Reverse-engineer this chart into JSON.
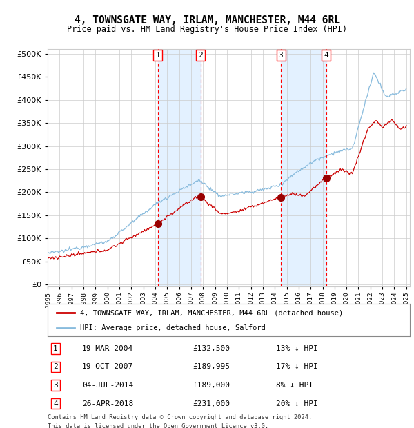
{
  "title": "4, TOWNSGATE WAY, IRLAM, MANCHESTER, M44 6RL",
  "subtitle": "Price paid vs. HM Land Registry's House Price Index (HPI)",
  "hpi_color": "#88bbdd",
  "price_color": "#cc0000",
  "sale_marker_color": "#990000",
  "bg_color": "#ddeeff",
  "grid_color": "#cccccc",
  "sales": [
    {
      "label": "1",
      "date": "19-MAR-2004",
      "price": 132500,
      "pct": "13%",
      "year": 2004.22
    },
    {
      "label": "2",
      "date": "19-OCT-2007",
      "price": 189995,
      "pct": "17%",
      "year": 2007.8
    },
    {
      "label": "3",
      "date": "04-JUL-2014",
      "price": 189000,
      "pct": "8%",
      "year": 2014.51
    },
    {
      "label": "4",
      "date": "26-APR-2018",
      "price": 231000,
      "pct": "20%",
      "year": 2018.31
    }
  ],
  "legend_line1": "4, TOWNSGATE WAY, IRLAM, MANCHESTER, M44 6RL (detached house)",
  "legend_line2": "HPI: Average price, detached house, Salford",
  "footer1": "Contains HM Land Registry data © Crown copyright and database right 2024.",
  "footer2": "This data is licensed under the Open Government Licence v3.0.",
  "yticks": [
    0,
    50000,
    100000,
    150000,
    200000,
    250000,
    300000,
    350000,
    400000,
    450000,
    500000
  ],
  "xstart": 1995,
  "xend": 2025
}
